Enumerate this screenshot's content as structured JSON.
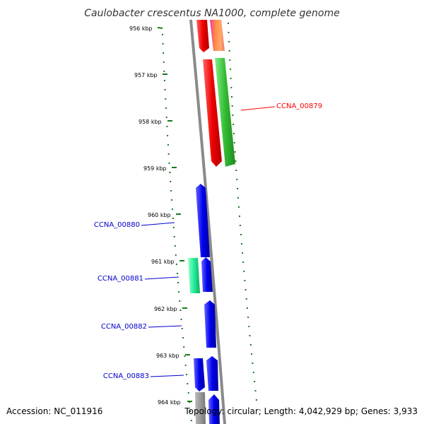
{
  "title": "Caulobacter crescentus NA1000, complete genome",
  "footer": {
    "accession": "Accession: NC_011916",
    "summary": "Topology: circular; Length: 4,042,929 bp; Genes: 3,933"
  },
  "ticks": [
    {
      "label": "956 kbp"
    },
    {
      "label": "957 kbp"
    },
    {
      "label": "958 kbp"
    },
    {
      "label": "959 kbp"
    },
    {
      "label": "960 kbp"
    },
    {
      "label": "961 kbp"
    },
    {
      "label": "962 kbp"
    },
    {
      "label": "963 kbp"
    },
    {
      "label": "964 kbp"
    }
  ],
  "gene_labels": [
    {
      "name": "CCNA_00879",
      "color": "#ff0000"
    },
    {
      "name": "CCNA_00880",
      "color": "#0000cc"
    },
    {
      "name": "CCNA_00881",
      "color": "#0000cc"
    },
    {
      "name": "CCNA_00882",
      "color": "#0000cc"
    },
    {
      "name": "CCNA_00883",
      "color": "#0000cc"
    }
  ],
  "colors": {
    "backbone": "#8a8a8a",
    "tick_marks": "#1a7a1a",
    "gene_red": "#ee1111",
    "gene_green": "#33cc33",
    "gene_blue": "#1111ee",
    "gene_teal": "#22ee99",
    "gene_gray": "#888888"
  }
}
